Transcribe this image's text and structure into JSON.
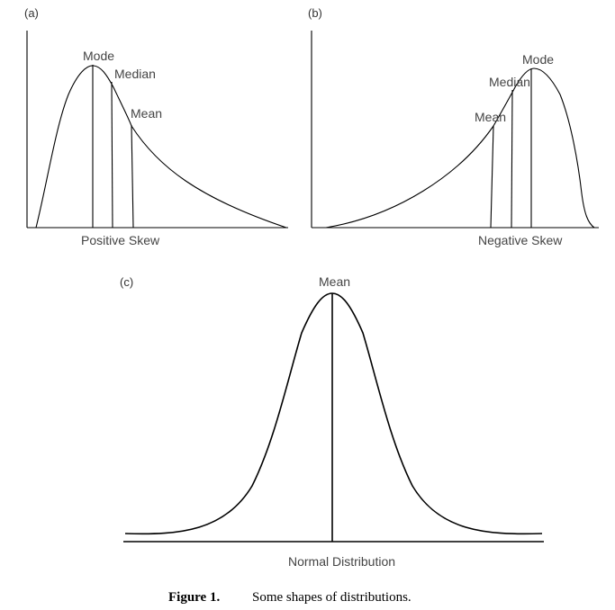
{
  "panel_a": {
    "label": "(a)",
    "mode_label": "Mode",
    "median_label": "Median",
    "mean_label": "Mean",
    "caption": "Positive Skew"
  },
  "panel_b": {
    "label": "(b)",
    "mode_label": "Mode",
    "median_label": "Median",
    "mean_label": "Mean",
    "caption": "Negative Skew"
  },
  "panel_c": {
    "label": "(c)",
    "mean_label": "Mean",
    "caption": "Normal Distribution"
  },
  "figure_caption": {
    "number": "Figure 1.",
    "text": "Some shapes of distributions."
  }
}
